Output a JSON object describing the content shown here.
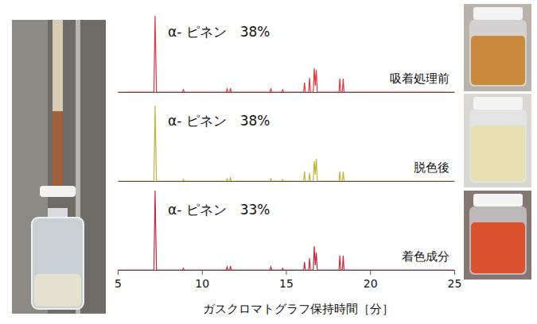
{
  "chart_data": [
    {
      "type": "line",
      "xlim": [
        5,
        25
      ],
      "ylim": [
        0,
        100
      ],
      "tick_labels": false,
      "annotation": "α- ピネン　38%",
      "x": [
        5,
        7.15,
        7.22,
        7.3,
        8.85,
        8.9,
        8.95,
        11.45,
        11.5,
        11.55,
        11.65,
        11.7,
        11.75,
        14.05,
        14.1,
        14.15,
        14.75,
        14.8,
        14.85,
        16.05,
        16.1,
        16.15,
        16.35,
        16.4,
        16.45,
        16.62,
        16.68,
        16.74,
        16.8,
        16.86,
        18.15,
        18.2,
        18.25,
        18.35,
        18.4,
        18.45,
        25
      ],
      "series": [
        {
          "name": "吸着処理前",
          "color": "#e8323c",
          "values": [
            0,
            0,
            96,
            0,
            0,
            3,
            0,
            0,
            4,
            0,
            0,
            5,
            0,
            0,
            5,
            0,
            0,
            3,
            0,
            0,
            12,
            0,
            0,
            18,
            0,
            0,
            30,
            8,
            28,
            0,
            0,
            17,
            0,
            0,
            17,
            0,
            0
          ]
        }
      ]
    },
    {
      "type": "line",
      "xlim": [
        5,
        25
      ],
      "ylim": [
        0,
        100
      ],
      "tick_labels": false,
      "annotation": "α- ピネン　38%",
      "x": [
        5,
        7.15,
        7.22,
        7.3,
        8.85,
        8.9,
        8.95,
        11.45,
        11.5,
        11.55,
        11.65,
        11.7,
        11.75,
        14.05,
        14.1,
        14.15,
        14.75,
        14.8,
        14.85,
        16.05,
        16.1,
        16.15,
        16.35,
        16.4,
        16.45,
        16.62,
        16.68,
        16.74,
        16.8,
        16.86,
        18.15,
        18.2,
        18.25,
        18.35,
        18.4,
        18.45,
        25
      ],
      "series": [
        {
          "name": "脱色後",
          "color": "#c4b23a",
          "values": [
            0,
            0,
            95,
            0,
            0,
            2,
            0,
            0,
            3,
            0,
            0,
            4,
            0,
            0,
            3,
            0,
            0,
            2,
            0,
            0,
            12,
            0,
            0,
            10,
            0,
            0,
            25,
            8,
            28,
            0,
            0,
            12,
            0,
            0,
            12,
            0,
            0
          ]
        }
      ]
    },
    {
      "type": "line",
      "xlim": [
        5,
        25
      ],
      "ylim": [
        0,
        100
      ],
      "tick_labels": "x",
      "xticks": [
        5,
        10,
        15,
        20,
        25
      ],
      "xlabel": "ガスクロマトグラフ保持時間［分］",
      "annotation": "α- ピネン　33%",
      "x": [
        5,
        7.15,
        7.22,
        7.3,
        8.85,
        8.9,
        8.95,
        11.45,
        11.5,
        11.55,
        11.65,
        11.7,
        11.75,
        14.05,
        14.1,
        14.15,
        14.75,
        14.8,
        14.85,
        16.05,
        16.1,
        16.15,
        16.35,
        16.4,
        16.45,
        16.62,
        16.68,
        16.74,
        16.8,
        16.86,
        18.15,
        18.2,
        18.25,
        18.35,
        18.4,
        18.45,
        25
      ],
      "series": [
        {
          "name": "着色成分",
          "color": "#c8283c",
          "values": [
            0,
            0,
            100,
            0,
            0,
            2,
            0,
            0,
            4,
            0,
            0,
            5,
            0,
            0,
            4,
            0,
            0,
            2,
            0,
            0,
            10,
            0,
            0,
            15,
            0,
            0,
            30,
            6,
            22,
            0,
            0,
            18,
            0,
            0,
            18,
            0,
            0
          ]
        }
      ]
    }
  ]
}
